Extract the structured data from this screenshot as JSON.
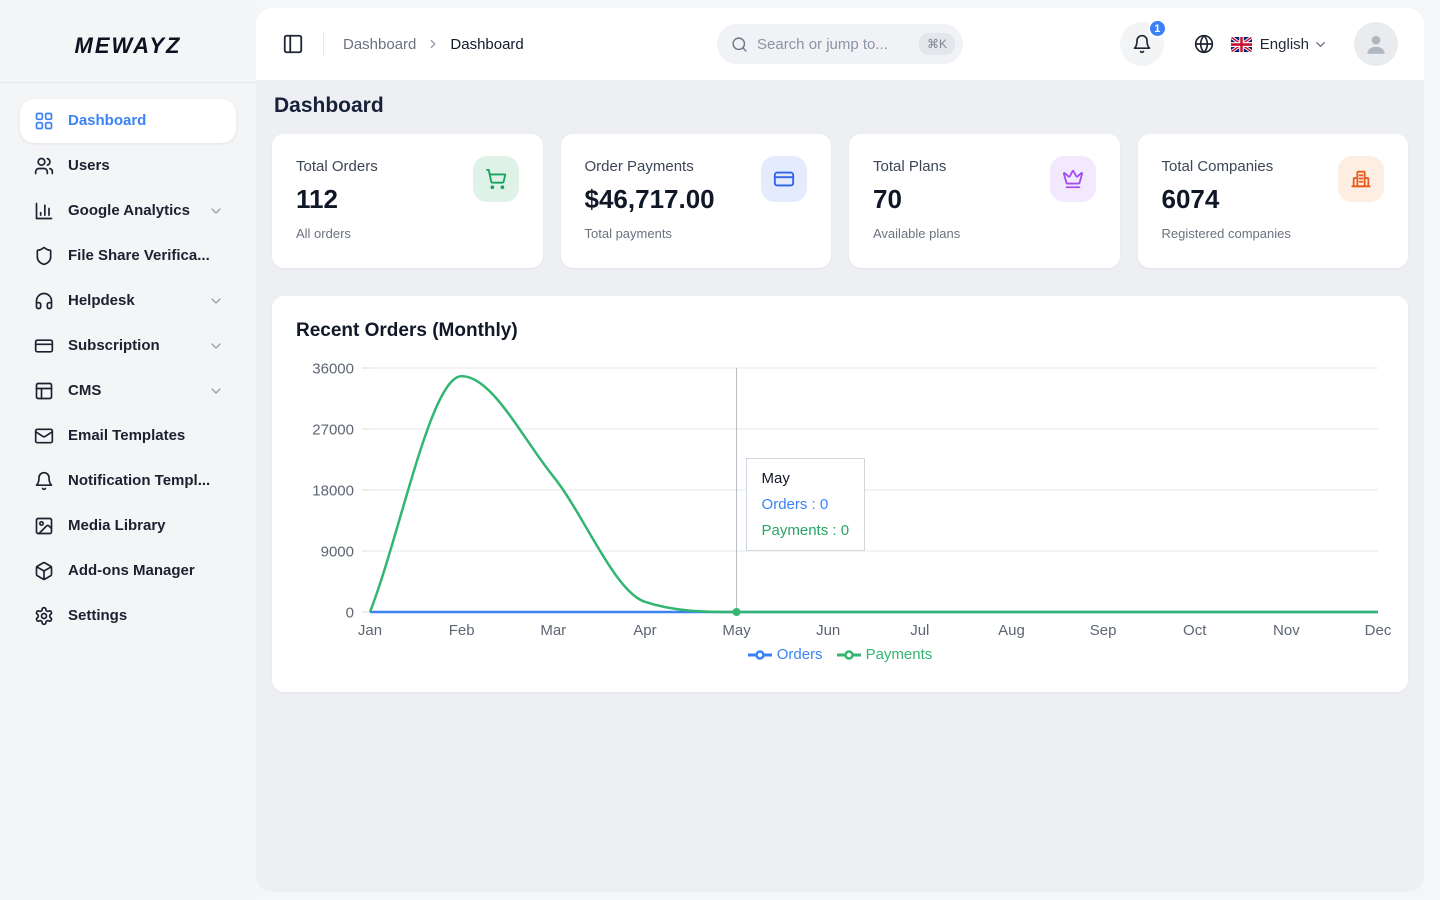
{
  "brand": {
    "logo_text": "MEWAYZ"
  },
  "theme": {
    "accent": "#3b82f6",
    "panel_bg": "#edeff3",
    "sidebar_bg": "#f4f5f7"
  },
  "sidebar": {
    "items": [
      {
        "label": "Dashboard",
        "icon": "grid-icon",
        "active": true,
        "expandable": false
      },
      {
        "label": "Users",
        "icon": "users-icon",
        "active": false,
        "expandable": false
      },
      {
        "label": "Google Analytics",
        "icon": "bar-chart-icon",
        "active": false,
        "expandable": true
      },
      {
        "label": "File Share Verifica...",
        "icon": "shield-icon",
        "active": false,
        "expandable": false
      },
      {
        "label": "Helpdesk",
        "icon": "headphones-icon",
        "active": false,
        "expandable": true
      },
      {
        "label": "Subscription",
        "icon": "credit-card-icon",
        "active": false,
        "expandable": true
      },
      {
        "label": "CMS",
        "icon": "layout-icon",
        "active": false,
        "expandable": true
      },
      {
        "label": "Email Templates",
        "icon": "mail-icon",
        "active": false,
        "expandable": false
      },
      {
        "label": "Notification Templ...",
        "icon": "bell-icon",
        "active": false,
        "expandable": false
      },
      {
        "label": "Media Library",
        "icon": "image-icon",
        "active": false,
        "expandable": false
      },
      {
        "label": "Add-ons Manager",
        "icon": "package-icon",
        "active": false,
        "expandable": false
      },
      {
        "label": "Settings",
        "icon": "gear-icon",
        "active": false,
        "expandable": false
      }
    ]
  },
  "header": {
    "breadcrumb": {
      "root": "Dashboard",
      "current": "Dashboard"
    },
    "search": {
      "placeholder": "Search or jump to...",
      "shortcut": "⌘K"
    },
    "notifications_count": "1",
    "language": {
      "label": "English",
      "flag": "uk-flag"
    }
  },
  "page": {
    "title": "Dashboard"
  },
  "stat_cards": [
    {
      "label": "Total Orders",
      "value": "112",
      "sub": "All orders",
      "icon": "cart-icon",
      "icon_color": "#17a express05e",
      "color": "#18a35f",
      "bg": "#def2e7"
    },
    {
      "label": "Order Payments",
      "value": "$46,717.00",
      "sub": "Total payments",
      "icon": "credit-card-icon",
      "color": "#2f63f0",
      "bg": "#e4ebfd"
    },
    {
      "label": "Total Plans",
      "value": "70",
      "sub": "Available plans",
      "icon": "crown-icon",
      "color": "#a44ef0",
      "bg": "#f3e9fe"
    },
    {
      "label": "Total Companies",
      "value": "6074",
      "sub": "Registered companies",
      "icon": "building-icon",
      "color": "#e85d1f",
      "bg": "#fdeee3"
    }
  ],
  "chart_data": {
    "type": "line",
    "title": "Recent Orders (Monthly)",
    "categories": [
      "Jan",
      "Feb",
      "Mar",
      "Apr",
      "May",
      "Jun",
      "Jul",
      "Aug",
      "Sep",
      "Oct",
      "Nov",
      "Dec"
    ],
    "series": [
      {
        "name": "Orders",
        "color": "#3b82f6",
        "values": [
          0,
          0,
          0,
          0,
          0,
          0,
          0,
          0,
          0,
          0,
          0,
          0
        ]
      },
      {
        "name": "Payments",
        "color": "#32b671",
        "values": [
          0,
          34800,
          20000,
          1500,
          0,
          0,
          0,
          0,
          0,
          0,
          0,
          0
        ]
      }
    ],
    "ylim": [
      0,
      36000
    ],
    "yticks": [
      0,
      9000,
      18000,
      27000,
      36000
    ],
    "grid": true,
    "legend_position": "bottom",
    "tooltip": {
      "index": 4,
      "title": "May",
      "rows": [
        {
          "text": "Orders : 0",
          "color": "#3b82f6"
        },
        {
          "text": "Payments : 0",
          "color": "#2aa564"
        }
      ]
    }
  }
}
